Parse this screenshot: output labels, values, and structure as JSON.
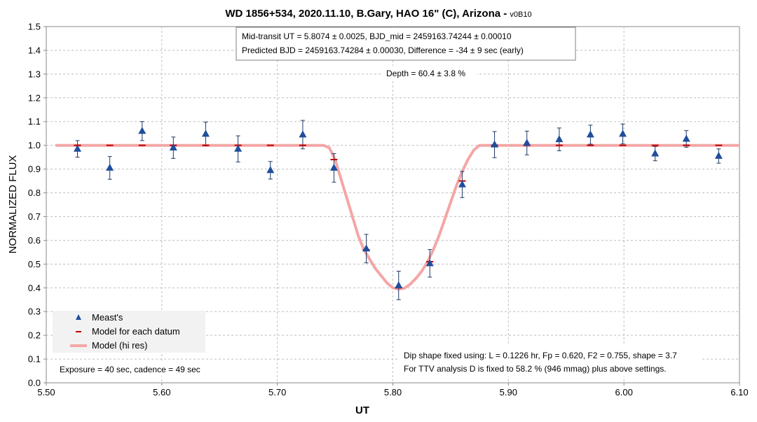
{
  "chart_data": {
    "type": "scatter",
    "title": "WD 1856+534, 2020.11.10, B.Gary, HAO 16\" (C), Arizona - ",
    "title_version": "v0B10",
    "xlabel": "UT",
    "ylabel": "NORMALIZED FLUX",
    "xlim": [
      5.5,
      6.1
    ],
    "ylim": [
      0.0,
      1.5
    ],
    "x_ticks": [
      "5.50",
      "5.60",
      "5.70",
      "5.80",
      "5.90",
      "6.00",
      "6.10"
    ],
    "y_ticks": [
      "0.0",
      "0.1",
      "0.2",
      "0.3",
      "0.4",
      "0.5",
      "0.6",
      "0.7",
      "0.8",
      "0.9",
      "1.0",
      "1.1",
      "1.2",
      "1.3",
      "1.4",
      "1.5"
    ],
    "grid": true,
    "legend_position": "bottom-left",
    "colors": {
      "meas": "#1f4e9c",
      "model_datum": "#c00000",
      "model_hires": "#f4a6a6",
      "errorbar": "#1f3864"
    },
    "series": [
      {
        "name": "Meast's",
        "x": [
          5.527,
          5.555,
          5.583,
          5.61,
          5.638,
          5.666,
          5.694,
          5.722,
          5.749,
          5.777,
          5.805,
          5.832,
          5.86,
          5.888,
          5.916,
          5.944,
          5.971,
          5.999,
          6.027,
          6.054,
          6.082
        ],
        "y": [
          0.985,
          0.905,
          1.06,
          0.99,
          1.048,
          0.985,
          0.895,
          1.045,
          0.905,
          0.565,
          0.41,
          0.503,
          0.835,
          1.003,
          1.01,
          1.025,
          1.045,
          1.048,
          0.965,
          1.027,
          0.955
        ],
        "err": [
          0.035,
          0.048,
          0.04,
          0.045,
          0.05,
          0.055,
          0.037,
          0.06,
          0.06,
          0.06,
          0.06,
          0.058,
          0.055,
          0.055,
          0.05,
          0.048,
          0.04,
          0.042,
          0.03,
          0.035,
          0.03
        ]
      },
      {
        "name": "Model for each datum",
        "x": [
          5.527,
          5.555,
          5.583,
          5.61,
          5.638,
          5.666,
          5.694,
          5.722,
          5.749,
          5.777,
          5.805,
          5.832,
          5.86,
          5.888,
          5.916,
          5.944,
          5.971,
          5.999,
          6.027,
          6.054,
          6.082
        ],
        "y": [
          1.0,
          1.0,
          1.0,
          1.0,
          1.0,
          1.0,
          1.0,
          1.0,
          0.94,
          0.56,
          0.4,
          0.51,
          0.85,
          1.0,
          1.0,
          1.0,
          1.0,
          1.0,
          1.0,
          1.0,
          1.0
        ]
      },
      {
        "name": "Model (hi res)",
        "x": [
          5.508,
          5.74,
          5.745,
          5.75,
          5.755,
          5.76,
          5.765,
          5.77,
          5.775,
          5.78,
          5.785,
          5.79,
          5.795,
          5.8,
          5.805,
          5.81,
          5.815,
          5.82,
          5.825,
          5.83,
          5.835,
          5.84,
          5.845,
          5.85,
          5.855,
          5.86,
          5.865,
          5.87,
          5.875,
          6.1
        ],
        "y": [
          1.0,
          1.0,
          0.99,
          0.94,
          0.86,
          0.78,
          0.7,
          0.62,
          0.56,
          0.52,
          0.48,
          0.45,
          0.42,
          0.4,
          0.395,
          0.398,
          0.415,
          0.44,
          0.47,
          0.51,
          0.56,
          0.62,
          0.69,
          0.76,
          0.83,
          0.89,
          0.94,
          0.98,
          1.0,
          1.0
        ]
      }
    ],
    "annotations": {
      "mid_transit_line1": "Mid-transit UT = 5.8074 ± 0.0025, BJD_mid = 2459163.74244 ± 0.00010",
      "mid_transit_line2": "Predicted BJD = 2459163.74284 ± 0.00030, Difference = -34 ± 9 sec (early)",
      "depth": "Depth = 60.4 ± 3.8 %",
      "dip_line1": "Dip shape fixed using:  L = 0.1226 hr, Fp = 0.620, F2 = 0.755, shape = 3.7",
      "dip_line2": "For TTV analysis D is fixed  to 58.2 % (946 mmag) plus above settings.",
      "exposure": "Exposure = 40 sec, cadence = 49 sec"
    }
  }
}
